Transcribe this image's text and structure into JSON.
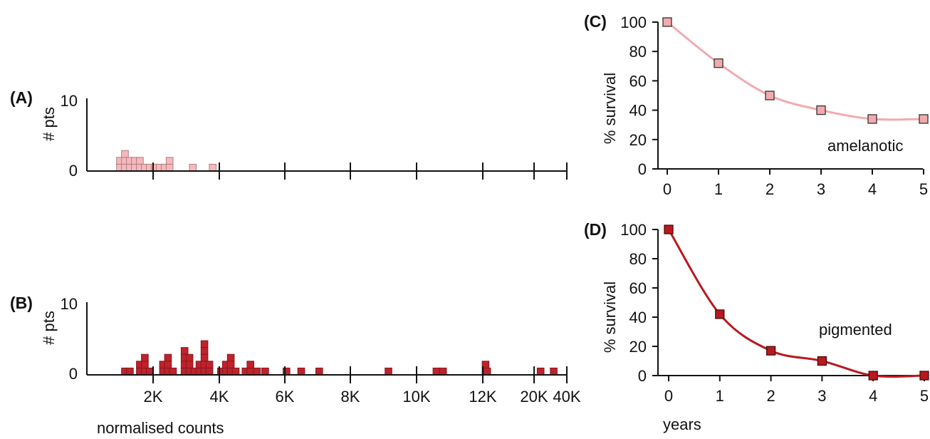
{
  "chart_data": [
    {
      "panel": "(A)",
      "type": "bar",
      "style": "stacked-square-histogram",
      "ylabel": "# pts",
      "yticks": [
        "0",
        "10"
      ],
      "ylim": [
        0,
        10
      ],
      "xticks": [
        "2K",
        "4K",
        "6K",
        "8K",
        "10K",
        "12K",
        "20K",
        "40K"
      ],
      "x_scale": "piecewise (2K-12K linear, then 20K, 40K)",
      "color": "#f6b8bb",
      "series": [
        {
          "x": [
            1000,
            1150,
            1300,
            1450,
            1600,
            1750,
            1900,
            2050,
            2200,
            2350,
            2500,
            3200,
            3800
          ],
          "values": [
            2,
            3,
            2,
            2,
            2,
            1,
            1,
            1,
            1,
            1,
            2,
            1,
            1
          ]
        }
      ]
    },
    {
      "panel": "(B)",
      "type": "bar",
      "style": "stacked-square-histogram",
      "ylabel": "# pts",
      "xlabel": "normalised counts",
      "yticks": [
        "0",
        "10"
      ],
      "ylim": [
        0,
        10
      ],
      "xticks": [
        "2K",
        "4K",
        "6K",
        "8K",
        "10K",
        "12K",
        "20K",
        "40K"
      ],
      "x_scale": "piecewise (2K-12K linear, then 20K, 40K)",
      "color": "#c0222b",
      "series": [
        {
          "x": [
            1150,
            1300,
            1600,
            1750,
            1900,
            2300,
            2450,
            2600,
            2950,
            3100,
            3250,
            3400,
            3550,
            3700,
            4050,
            4200,
            4350,
            4500,
            4800,
            4950,
            5150,
            5400,
            6050,
            6500,
            7050,
            9150,
            10600,
            10800,
            12350,
            12550,
            24000,
            32000
          ],
          "values": [
            1,
            1,
            2,
            3,
            1,
            2,
            3,
            1,
            4,
            3,
            1,
            2,
            5,
            2,
            1,
            2,
            3,
            1,
            1,
            2,
            1,
            1,
            1,
            1,
            1,
            1,
            1,
            1,
            2,
            1,
            1,
            1
          ]
        }
      ]
    },
    {
      "panel": "(C)",
      "type": "line",
      "ylabel": "% survival",
      "annotation": "amelanotic",
      "xlim": [
        0,
        5
      ],
      "ylim": [
        0,
        100
      ],
      "xticks": [
        "0",
        "1",
        "2",
        "3",
        "4",
        "5"
      ],
      "yticks": [
        "0",
        "20",
        "40",
        "60",
        "80",
        "100"
      ],
      "color": "#f3aaad",
      "series": [
        {
          "x": [
            0,
            1,
            2,
            3,
            4,
            5
          ],
          "values": [
            100,
            72,
            50,
            40,
            34,
            34
          ]
        }
      ]
    },
    {
      "panel": "(D)",
      "type": "line",
      "ylabel": "% survival",
      "xlabel": "years",
      "annotation": "pigmented",
      "xlim": [
        0,
        5
      ],
      "ylim": [
        0,
        100
      ],
      "xticks": [
        "0",
        "1",
        "2",
        "3",
        "4",
        "5"
      ],
      "yticks": [
        "0",
        "20",
        "40",
        "60",
        "80",
        "100"
      ],
      "color": "#b7191f",
      "series": [
        {
          "x": [
            0,
            1,
            2,
            3,
            4,
            5
          ],
          "values": [
            100,
            42,
            17,
            10,
            0,
            0
          ]
        }
      ]
    }
  ]
}
